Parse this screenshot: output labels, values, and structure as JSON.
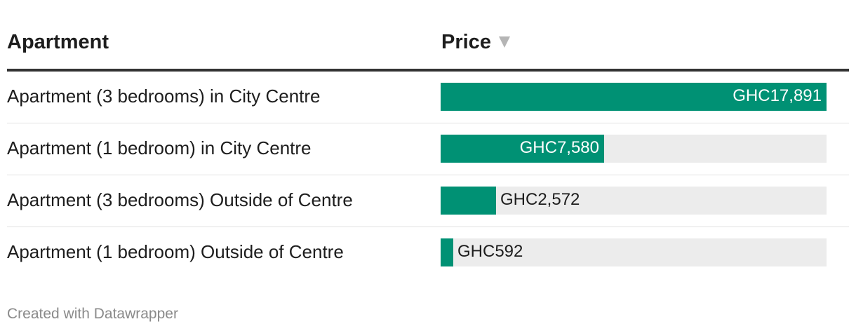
{
  "table": {
    "header": {
      "apartment": "Apartment",
      "price": "Price"
    },
    "sort_icon": "triangle-down-icon"
  },
  "chart_data": {
    "type": "bar",
    "orientation": "horizontal",
    "categories": [
      "Apartment (3 bedrooms) in City Centre",
      "Apartment (1 bedroom) in City Centre",
      "Apartment (3 bedrooms) Outside of Centre",
      "Apartment (1 bedroom) Outside of Centre"
    ],
    "values": [
      17891,
      7580,
      2572,
      592
    ],
    "value_labels": [
      "GHC17,891",
      "GHC7,580",
      "GHC2,572",
      "GHC592"
    ],
    "xlim": [
      0,
      17891
    ],
    "sort": "descending",
    "colors": {
      "bar": "#009174",
      "track": "#ececec"
    }
  },
  "footer": {
    "credit": "Created with Datawrapper"
  }
}
